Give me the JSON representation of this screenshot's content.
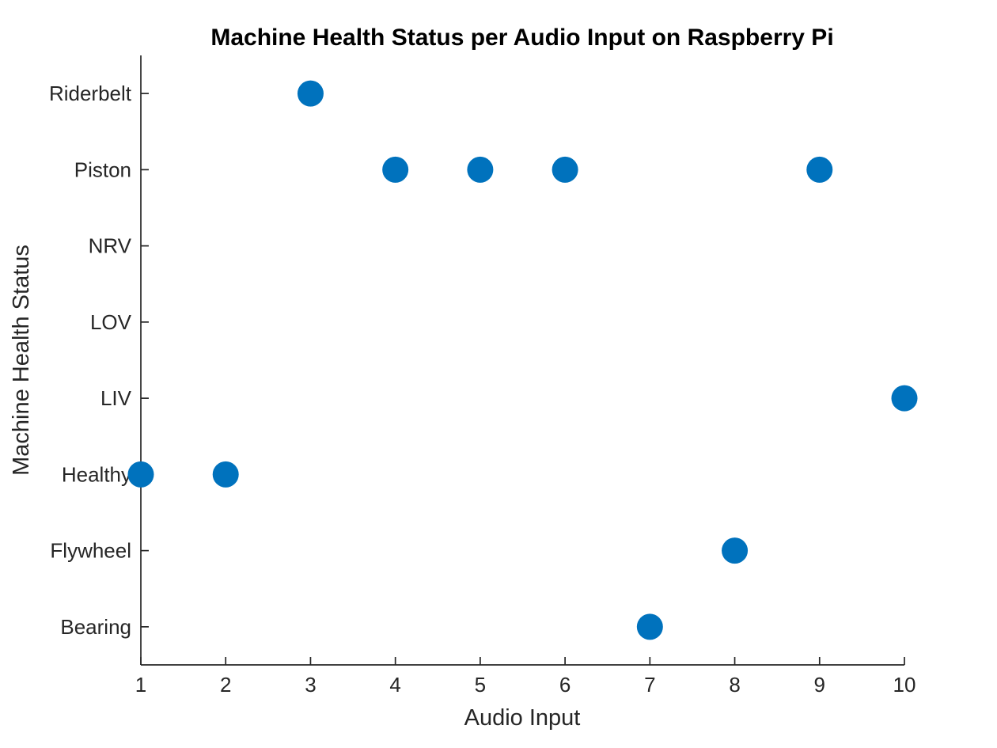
{
  "chart_data": {
    "type": "scatter",
    "title": "Machine Health Status per Audio Input on Raspberry Pi",
    "xlabel": "Audio Input",
    "ylabel": "Machine Health Status",
    "x_ticks": [
      1,
      2,
      3,
      4,
      5,
      6,
      7,
      8,
      9,
      10
    ],
    "xlim": [
      1,
      10
    ],
    "y_categories_top_to_bottom": [
      "Riderbelt",
      "Piston",
      "NRV",
      "LOV",
      "LIV",
      "Healthy",
      "Flywheel",
      "Bearing"
    ],
    "points": [
      {
        "x": 1,
        "y": "Healthy"
      },
      {
        "x": 2,
        "y": "Healthy"
      },
      {
        "x": 3,
        "y": "Riderbelt"
      },
      {
        "x": 4,
        "y": "Piston"
      },
      {
        "x": 5,
        "y": "Piston"
      },
      {
        "x": 6,
        "y": "Piston"
      },
      {
        "x": 7,
        "y": "Bearing"
      },
      {
        "x": 8,
        "y": "Flywheel"
      },
      {
        "x": 9,
        "y": "Piston"
      },
      {
        "x": 10,
        "y": "LIV"
      }
    ],
    "grid": false,
    "legend": null,
    "colors": {
      "marker": "#0072BD",
      "axis": "#262626",
      "title": "#000000",
      "background": "#ffffff"
    }
  }
}
